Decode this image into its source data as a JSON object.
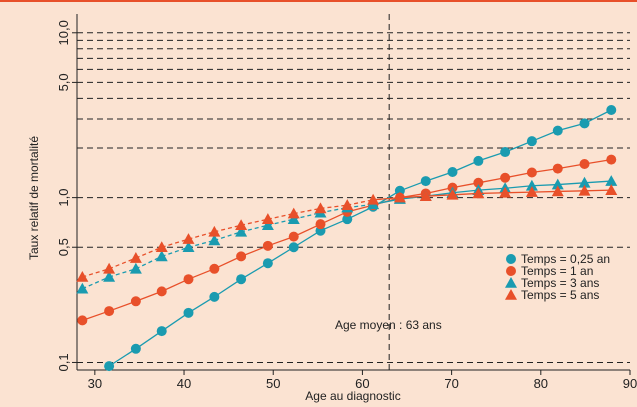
{
  "chart_data": {
    "type": "line",
    "xlabel": "Age au diagnostic",
    "ylabel": "Taux relatif de mortalité",
    "xlim": [
      28,
      90
    ],
    "ylim": [
      0.09,
      13
    ],
    "yscale": "log",
    "x_ticks": [
      30,
      40,
      50,
      60,
      70,
      80,
      90
    ],
    "y_ticks": [
      {
        "value": 0.1,
        "label": "0,1"
      },
      {
        "value": 0.5,
        "label": "0,5"
      },
      {
        "value": 1.0,
        "label": "1,0"
      },
      {
        "value": 5.0,
        "label": "5,0"
      },
      {
        "value": 10.0,
        "label": "10,0"
      }
    ],
    "y_gridlines": [
      0.1,
      0.5,
      1,
      2,
      3,
      4,
      5,
      6,
      7,
      8,
      9,
      10
    ],
    "vline": {
      "x": 63,
      "label": "Age moyen : 63 ans"
    },
    "legend_position": "bottom-right",
    "series": [
      {
        "name": "Temps = 0,25 an",
        "color": "#1a9bb0",
        "marker": "circle",
        "dashed_before_x": null,
        "x": [
          31.6,
          34.6,
          37.5,
          40.5,
          43.4,
          46.4,
          49.4,
          52.3,
          55.3,
          58.3,
          61.2,
          64.2,
          67.1,
          70.1,
          73.0,
          76.0,
          79.0,
          81.9,
          84.9,
          87.9
        ],
        "y": [
          0.095,
          0.121,
          0.155,
          0.2,
          0.25,
          0.32,
          0.4,
          0.5,
          0.63,
          0.74,
          0.88,
          1.1,
          1.26,
          1.43,
          1.67,
          1.89,
          2.2,
          2.55,
          2.82,
          3.4
        ]
      },
      {
        "name": "Temps = 1 an",
        "color": "#e8502a",
        "marker": "circle",
        "dashed_before_x": null,
        "x": [
          28.6,
          31.6,
          34.6,
          37.5,
          40.5,
          43.4,
          46.4,
          49.4,
          52.3,
          55.3,
          58.3,
          61.2,
          64.2,
          67.1,
          70.1,
          73.0,
          76.0,
          79.0,
          81.9,
          84.9,
          87.9
        ],
        "y": [
          0.18,
          0.205,
          0.235,
          0.27,
          0.32,
          0.37,
          0.44,
          0.51,
          0.58,
          0.69,
          0.82,
          0.9,
          1.0,
          1.06,
          1.15,
          1.23,
          1.32,
          1.42,
          1.5,
          1.6,
          1.7
        ]
      },
      {
        "name": "Temps = 3 ans",
        "color": "#1a9bb0",
        "marker": "triangle",
        "dashed_before_x": 61.2,
        "x": [
          28.6,
          31.6,
          34.6,
          37.5,
          40.5,
          43.4,
          46.4,
          49.4,
          52.3,
          55.3,
          58.3,
          61.2,
          64.2,
          67.1,
          70.1,
          73.0,
          76.0,
          79.0,
          81.9,
          84.9,
          87.9
        ],
        "y": [
          0.28,
          0.33,
          0.37,
          0.44,
          0.5,
          0.55,
          0.62,
          0.68,
          0.74,
          0.81,
          0.87,
          0.91,
          0.98,
          1.02,
          1.07,
          1.11,
          1.14,
          1.18,
          1.2,
          1.23,
          1.26
        ]
      },
      {
        "name": "Temps = 5 ans",
        "color": "#e8502a",
        "marker": "triangle",
        "dashed_before_x": 61.2,
        "x": [
          28.6,
          31.6,
          34.6,
          37.5,
          40.5,
          43.4,
          46.4,
          49.4,
          52.3,
          55.3,
          58.3,
          61.2,
          64.2,
          67.1,
          70.1,
          73.0,
          76.0,
          79.0,
          81.9,
          84.9,
          87.9
        ],
        "y": [
          0.33,
          0.37,
          0.43,
          0.5,
          0.56,
          0.62,
          0.68,
          0.74,
          0.8,
          0.86,
          0.9,
          0.97,
          1.0,
          1.02,
          1.04,
          1.06,
          1.07,
          1.08,
          1.09,
          1.1,
          1.11
        ]
      }
    ]
  }
}
